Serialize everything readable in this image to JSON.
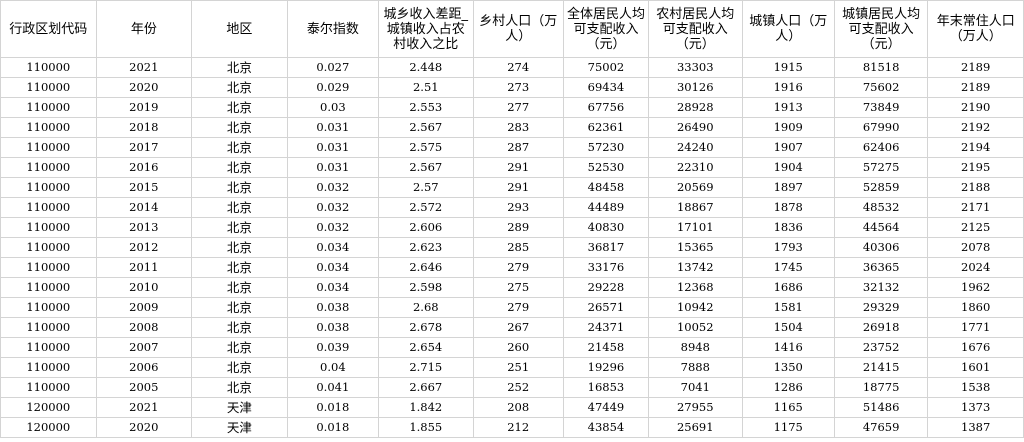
{
  "table": {
    "headers": [
      "行政区划代码",
      "年份",
      "地区",
      "泰尔指数",
      "城乡收入差距_城镇收入占农村收入之比",
      "乡村人口（万人）",
      "全体居民人均可支配收入（元）",
      "农村居民人均可支配收入（元）",
      "城镇人口（万人）",
      "城镇居民人均可支配收入（元）",
      "年末常住人口（万人）"
    ],
    "rows": [
      [
        "110000",
        "2021",
        "北京",
        "0.027",
        "2.448",
        "274",
        "75002",
        "33303",
        "1915",
        "81518",
        "2189"
      ],
      [
        "110000",
        "2020",
        "北京",
        "0.029",
        "2.51",
        "273",
        "69434",
        "30126",
        "1916",
        "75602",
        "2189"
      ],
      [
        "110000",
        "2019",
        "北京",
        "0.03",
        "2.553",
        "277",
        "67756",
        "28928",
        "1913",
        "73849",
        "2190"
      ],
      [
        "110000",
        "2018",
        "北京",
        "0.031",
        "2.567",
        "283",
        "62361",
        "26490",
        "1909",
        "67990",
        "2192"
      ],
      [
        "110000",
        "2017",
        "北京",
        "0.031",
        "2.575",
        "287",
        "57230",
        "24240",
        "1907",
        "62406",
        "2194"
      ],
      [
        "110000",
        "2016",
        "北京",
        "0.031",
        "2.567",
        "291",
        "52530",
        "22310",
        "1904",
        "57275",
        "2195"
      ],
      [
        "110000",
        "2015",
        "北京",
        "0.032",
        "2.57",
        "291",
        "48458",
        "20569",
        "1897",
        "52859",
        "2188"
      ],
      [
        "110000",
        "2014",
        "北京",
        "0.032",
        "2.572",
        "293",
        "44489",
        "18867",
        "1878",
        "48532",
        "2171"
      ],
      [
        "110000",
        "2013",
        "北京",
        "0.032",
        "2.606",
        "289",
        "40830",
        "17101",
        "1836",
        "44564",
        "2125"
      ],
      [
        "110000",
        "2012",
        "北京",
        "0.034",
        "2.623",
        "285",
        "36817",
        "15365",
        "1793",
        "40306",
        "2078"
      ],
      [
        "110000",
        "2011",
        "北京",
        "0.034",
        "2.646",
        "279",
        "33176",
        "13742",
        "1745",
        "36365",
        "2024"
      ],
      [
        "110000",
        "2010",
        "北京",
        "0.034",
        "2.598",
        "275",
        "29228",
        "12368",
        "1686",
        "32132",
        "1962"
      ],
      [
        "110000",
        "2009",
        "北京",
        "0.038",
        "2.68",
        "279",
        "26571",
        "10942",
        "1581",
        "29329",
        "1860"
      ],
      [
        "110000",
        "2008",
        "北京",
        "0.038",
        "2.678",
        "267",
        "24371",
        "10052",
        "1504",
        "26918",
        "1771"
      ],
      [
        "110000",
        "2007",
        "北京",
        "0.039",
        "2.654",
        "260",
        "21458",
        "8948",
        "1416",
        "23752",
        "1676"
      ],
      [
        "110000",
        "2006",
        "北京",
        "0.04",
        "2.715",
        "251",
        "19296",
        "7888",
        "1350",
        "21415",
        "1601"
      ],
      [
        "110000",
        "2005",
        "北京",
        "0.041",
        "2.667",
        "252",
        "16853",
        "7041",
        "1286",
        "18775",
        "1538"
      ],
      [
        "120000",
        "2021",
        "天津",
        "0.018",
        "1.842",
        "208",
        "47449",
        "27955",
        "1165",
        "51486",
        "1373"
      ],
      [
        "120000",
        "2020",
        "天津",
        "0.018",
        "1.855",
        "212",
        "43854",
        "25691",
        "1175",
        "47659",
        "1387"
      ]
    ]
  }
}
